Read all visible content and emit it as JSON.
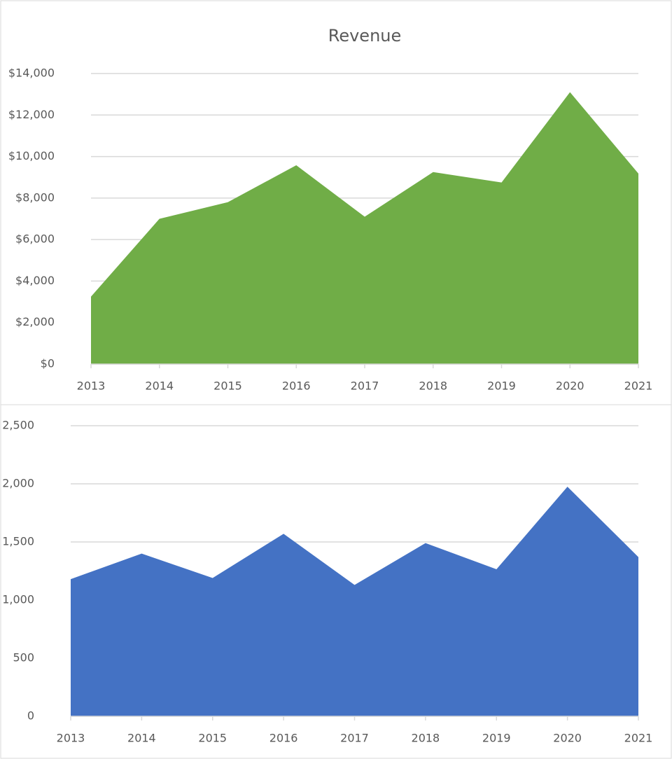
{
  "chart_data": [
    {
      "type": "area",
      "title": "Revenue",
      "categories": [
        "2013",
        "2014",
        "2015",
        "2016",
        "2017",
        "2018",
        "2019",
        "2020",
        "2021"
      ],
      "series": [
        {
          "name": "Revenue",
          "color": "#70ad47",
          "values": [
            3250,
            7000,
            7800,
            9580,
            7100,
            9250,
            8750,
            13100,
            9180
          ]
        }
      ],
      "ylim": [
        0,
        14000
      ],
      "yticks": [
        {
          "value": 0,
          "label": "$0"
        },
        {
          "value": 2000,
          "label": "$2,000"
        },
        {
          "value": 4000,
          "label": "$4,000"
        },
        {
          "value": 6000,
          "label": "$6,000"
        },
        {
          "value": 8000,
          "label": "$8,000"
        },
        {
          "value": 10000,
          "label": "$10,000"
        },
        {
          "value": 12000,
          "label": "$12,000"
        },
        {
          "value": 14000,
          "label": "$14,000"
        }
      ],
      "grid": true
    },
    {
      "type": "area",
      "categories": [
        "2013",
        "2014",
        "2015",
        "2016",
        "2017",
        "2018",
        "2019",
        "2020",
        "2021"
      ],
      "series": [
        {
          "color": "#4472c4",
          "values": [
            1180,
            1400,
            1190,
            1570,
            1130,
            1490,
            1265,
            1975,
            1370
          ]
        }
      ],
      "ylim": [
        0,
        2500
      ],
      "yticks": [
        0,
        500,
        {
          "value": 1000,
          "label": "1,000"
        },
        {
          "value": 1500,
          "label": "1,500"
        },
        {
          "value": 2000,
          "label": "2,000"
        },
        {
          "value": 2500,
          "label": "2,500"
        }
      ],
      "grid": true
    }
  ]
}
